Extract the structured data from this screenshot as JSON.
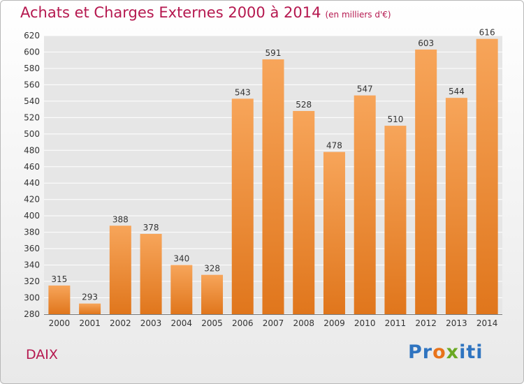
{
  "header": {
    "title": "Achats et Charges Externes 2000 à 2014",
    "subtitle": "(en milliers d'€)"
  },
  "footer": {
    "city": "DAIX",
    "logo": {
      "p1": "Pr",
      "p2": "o",
      "p3": "x",
      "p4": "iti"
    }
  },
  "colors": {
    "bar_light": "#f7a55a",
    "bar_dark": "#e0761c",
    "title": "#b5184f",
    "grid": "#ffffff"
  },
  "chart_data": {
    "type": "bar",
    "title": "Achats et Charges Externes 2000 à 2014",
    "subtitle": "(en milliers d'€)",
    "categories": [
      "2000",
      "2001",
      "2002",
      "2003",
      "2004",
      "2005",
      "2006",
      "2007",
      "2008",
      "2009",
      "2010",
      "2011",
      "2012",
      "2013",
      "2014"
    ],
    "values": [
      315,
      293,
      388,
      378,
      340,
      328,
      543,
      591,
      528,
      478,
      547,
      510,
      603,
      544,
      616
    ],
    "ylim": [
      280,
      620
    ],
    "yticks": [
      280,
      300,
      320,
      340,
      360,
      380,
      400,
      420,
      440,
      460,
      480,
      500,
      520,
      540,
      560,
      580,
      600,
      620
    ],
    "grid": true,
    "legend": "none",
    "xlabel": "",
    "ylabel": ""
  }
}
